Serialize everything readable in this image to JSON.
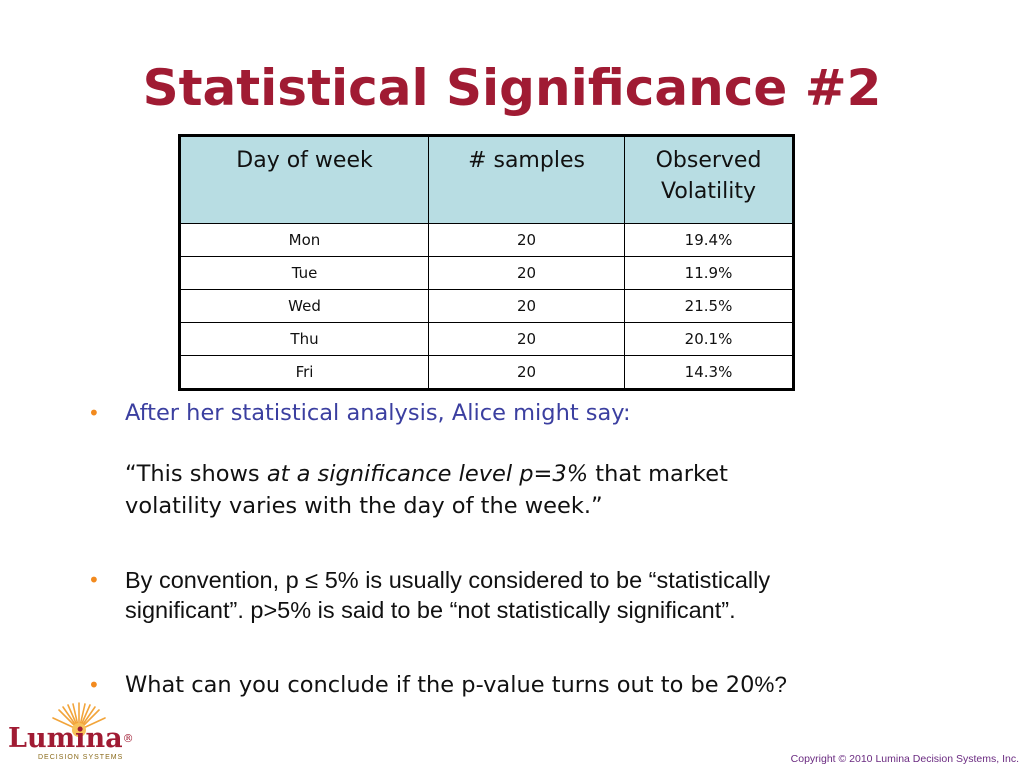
{
  "slide": {
    "title": "Statistical Significance #2"
  },
  "table": {
    "headers": [
      "Day of week",
      "# samples",
      "Observed Volatility"
    ],
    "header_lines": {
      "observed_line1": "Observed",
      "observed_line2": "Volatility"
    },
    "rows": [
      {
        "day": "Mon",
        "samples": "20",
        "volatility": "19.4%"
      },
      {
        "day": "Tue",
        "samples": "20",
        "volatility": "11.9%"
      },
      {
        "day": "Wed",
        "samples": "20",
        "volatility": "21.5%"
      },
      {
        "day": "Thu",
        "samples": "20",
        "volatility": "20.1%"
      },
      {
        "day": "Fri",
        "samples": "20",
        "volatility": "14.3%"
      }
    ]
  },
  "bullets": {
    "b1": {
      "text": "After her statistical analysis, Alice might say:",
      "quote_pre": "“This shows ",
      "quote_italic": "at a significance level p=3%",
      "quote_mid": " that market",
      "quote_line2": "volatility varies with the day of the week.”"
    },
    "b2": {
      "line1": "By convention, p ≤ 5% is usually considered to be “statistically",
      "line2": "significant”.  p>5% is said to be “not statistically significant”."
    },
    "b3": {
      "text_main": "What can you conclude if the p-value turns out to be 20",
      "text_tail": "%?"
    }
  },
  "logo": {
    "name": "Lumina",
    "mark": "®",
    "subtitle": "DECISION SYSTEMS"
  },
  "footer": {
    "copyright": "Copyright © 2010 Lumina Decision Systems, Inc."
  },
  "colors": {
    "title": "#a01b33",
    "bullet_dot": "#f28a1e",
    "header_fill": "#b8dde3",
    "b1_text": "#3b3fa0",
    "copyright": "#6a2a80"
  }
}
